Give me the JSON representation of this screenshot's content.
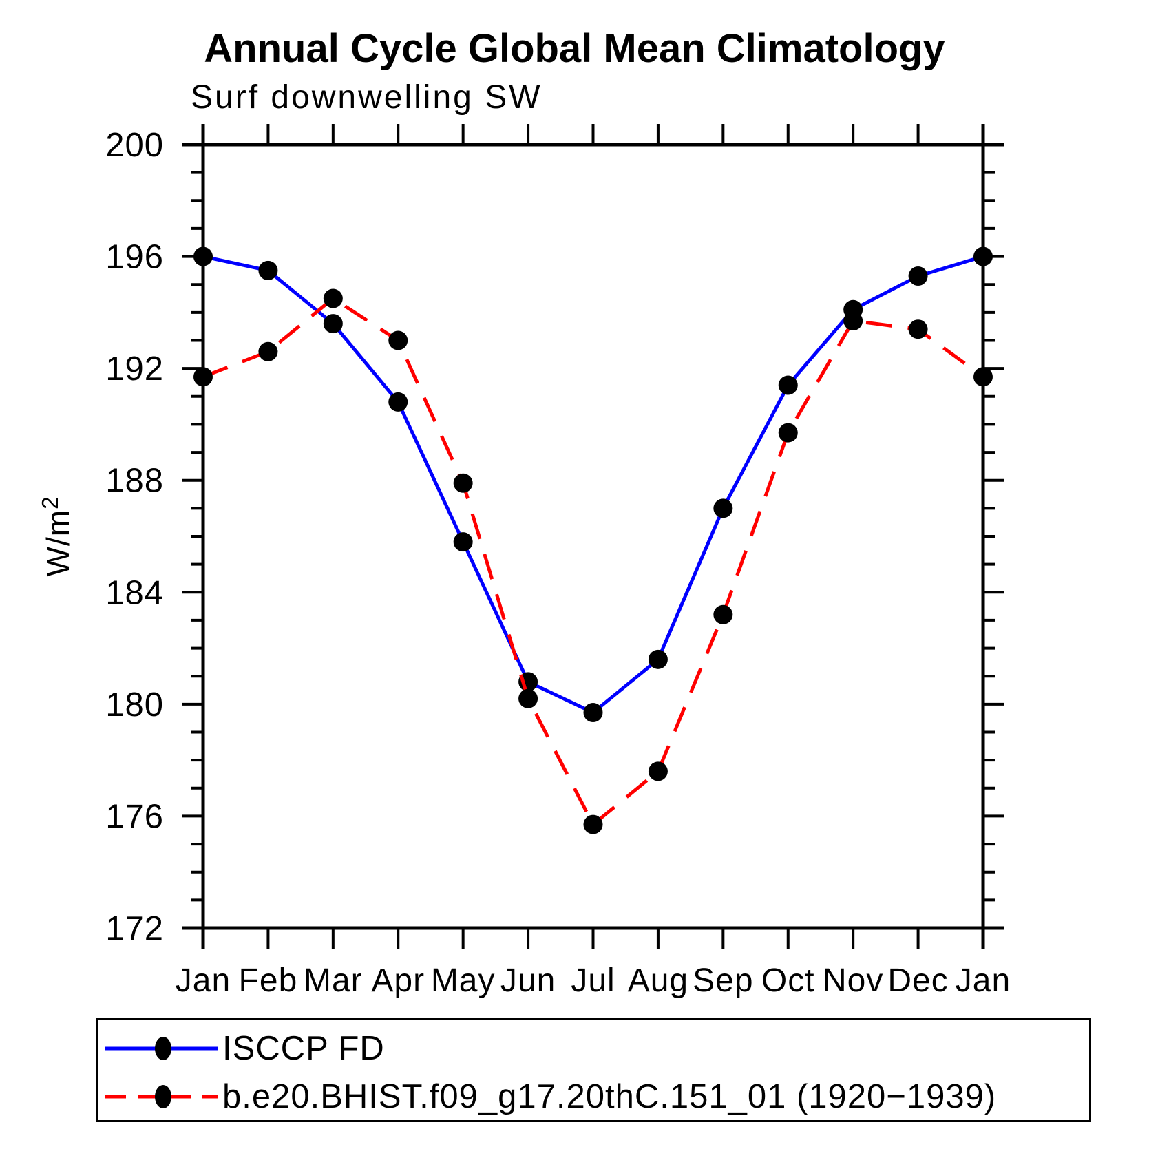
{
  "header": {
    "title": "Annual Cycle Global Mean Climatology",
    "subtitle": "Surf downwelling SW"
  },
  "colors": {
    "axis": "#000000",
    "text": "#000000",
    "marker": "#000000",
    "series_isccp": "#0000ff",
    "series_model": "#ff0000",
    "background": "#ffffff"
  },
  "chart_data": {
    "type": "line",
    "title": "Annual Cycle Global Mean Climatology",
    "subtitle": "Surf downwelling SW",
    "xlabel": "",
    "ylabel": "W/m2",
    "ylabel_base": "W/m",
    "ylabel_sup": "2",
    "ylim": [
      172,
      200
    ],
    "y_major_step": 4,
    "y_minor_step": 1,
    "grid": false,
    "legend_position": "bottom-box",
    "x_tick_labels": [
      "Jan",
      "Feb",
      "Mar",
      "Apr",
      "May",
      "Jun",
      "Jul",
      "Aug",
      "Sep",
      "Oct",
      "Nov",
      "Dec",
      "Jan"
    ],
    "y_tick_labels": [
      "172",
      "176",
      "180",
      "184",
      "188",
      "192",
      "196",
      "200"
    ],
    "series": [
      {
        "name": "ISCCP FD",
        "color": "#0000ff",
        "style": "solid",
        "marker": "circle",
        "marker_color": "#000000",
        "values": [
          196.0,
          195.5,
          193.6,
          190.8,
          185.8,
          180.8,
          179.7,
          181.6,
          187.0,
          191.4,
          194.1,
          195.3,
          196.0
        ]
      },
      {
        "name": "b.e20.BHIST.f09_g17.20thC.151_01 (1920−1939)",
        "color": "#ff0000",
        "style": "dashed",
        "marker": "circle",
        "marker_color": "#000000",
        "values": [
          191.7,
          192.6,
          194.5,
          193.0,
          187.9,
          180.2,
          175.7,
          177.6,
          183.2,
          189.7,
          193.7,
          193.4,
          191.7
        ]
      }
    ]
  }
}
